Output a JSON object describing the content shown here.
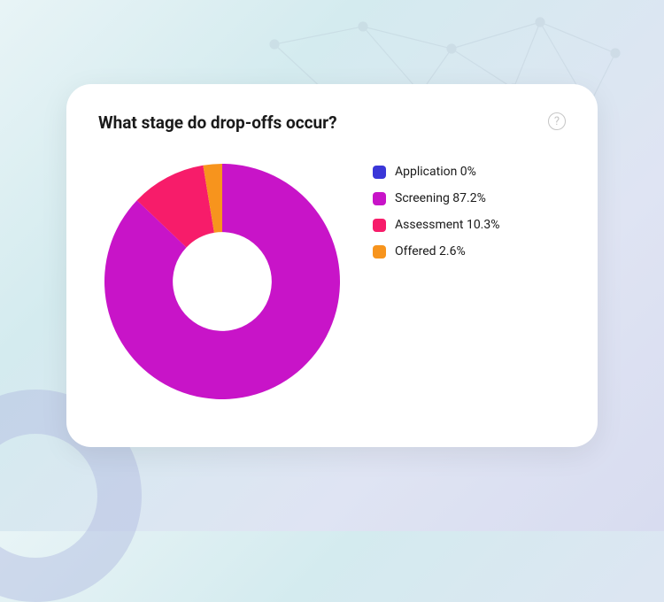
{
  "background": {
    "gradient_colors": [
      "#e8f4f6",
      "#d4ebef",
      "#dfe4f3",
      "#d8dcf0"
    ],
    "network_node_color": "#b8c8d4",
    "network_line_color": "#b8c8d4",
    "circle_color": "rgba(180,190,225,0.5)"
  },
  "card": {
    "title": "What stage do drop-offs occur?",
    "title_fontsize": 19,
    "title_color": "#1a1a1a",
    "background_color": "#ffffff",
    "border_radius": 28
  },
  "chart": {
    "type": "donut",
    "inner_radius_ratio": 0.42,
    "start_angle_deg": -90,
    "series": [
      {
        "label": "Application",
        "value": 0,
        "display": "Application 0%",
        "color": "#3a36d8"
      },
      {
        "label": "Screening",
        "value": 87.2,
        "display": "Screening 87.2%",
        "color": "#c814c8"
      },
      {
        "label": "Assessment",
        "value": 10.3,
        "display": "Assessment 10.3%",
        "color": "#f71c6a"
      },
      {
        "label": "Offered",
        "value": 2.6,
        "display": "Offered 2.6%",
        "color": "#f7941d"
      }
    ],
    "legend_swatch_size": 15,
    "legend_swatch_radius": 4,
    "legend_fontsize": 14,
    "legend_color": "#1a1a1a"
  }
}
